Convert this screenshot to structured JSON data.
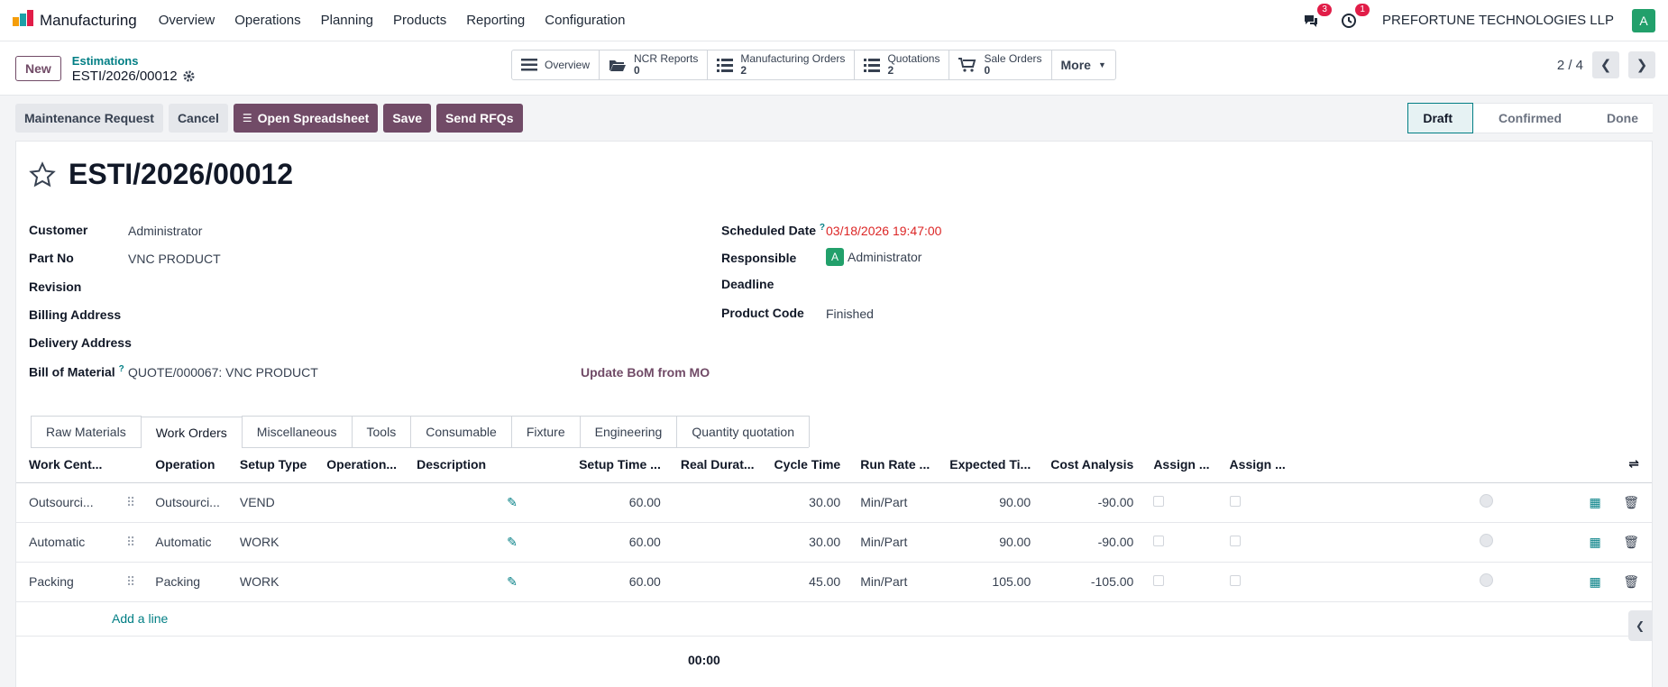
{
  "app": {
    "name": "Manufacturing"
  },
  "nav": {
    "items": [
      "Overview",
      "Operations",
      "Planning",
      "Products",
      "Reporting",
      "Configuration"
    ]
  },
  "systray": {
    "messages_count": "3",
    "activities_count": "1",
    "company": "PREFORTUNE TECHNOLOGIES LLP",
    "avatar_letter": "A"
  },
  "control": {
    "new_label": "New",
    "breadcrumb_parent": "Estimations",
    "breadcrumb_current": "ESTI/2026/00012",
    "pager": "2 / 4"
  },
  "smart_buttons": {
    "overview": "Overview",
    "ncr_label": "NCR Reports",
    "ncr_count": "0",
    "mo_label": "Manufacturing Orders",
    "mo_count": "2",
    "quot_label": "Quotations",
    "quot_count": "2",
    "so_label": "Sale Orders",
    "so_count": "0",
    "more": "More"
  },
  "actions": {
    "maintenance": "Maintenance Request",
    "cancel": "Cancel",
    "spreadsheet": "Open Spreadsheet",
    "save": "Save",
    "rfq": "Send RFQs"
  },
  "stages": {
    "draft": "Draft",
    "confirmed": "Confirmed",
    "done": "Done"
  },
  "record": {
    "title": "ESTI/2026/00012",
    "customer_label": "Customer",
    "customer": "Administrator",
    "partno_label": "Part No",
    "partno": "VNC PRODUCT",
    "revision_label": "Revision",
    "billing_label": "Billing Address",
    "delivery_label": "Delivery Address",
    "bom_label": "Bill of Material",
    "bom": "QUOTE/000067: VNC PRODUCT",
    "update_bom": "Update BoM from MO",
    "scheduled_label": "Scheduled Date",
    "scheduled": "03/18/2026 19:47:00",
    "responsible_label": "Responsible",
    "responsible": "Administrator",
    "responsible_avatar": "A",
    "deadline_label": "Deadline",
    "product_code_label": "Product Code",
    "product_code": "Finished",
    "tooltip_mark": "?"
  },
  "tabs": [
    "Raw Materials",
    "Work Orders",
    "Miscellaneous",
    "Tools",
    "Consumable",
    "Fixture",
    "Engineering",
    "Quantity quotation"
  ],
  "table": {
    "headers": [
      "Work Cent...",
      "Operation",
      "Setup Type",
      "Operation...",
      "Description",
      "Setup Time ...",
      "Real Durat...",
      "Cycle Time",
      "Run Rate ...",
      "Expected Ti...",
      "Cost Analysis",
      "Assign ...",
      "Assign ..."
    ],
    "rows": [
      {
        "wc": "Outsourci...",
        "op": "Outsourci...",
        "setup_type": "VEND",
        "setup_time": "60.00",
        "cycle": "30.00",
        "rate": "Min/Part",
        "expected": "90.00",
        "cost": "-90.00"
      },
      {
        "wc": "Automatic",
        "op": "Automatic",
        "setup_type": "WORK",
        "setup_time": "60.00",
        "cycle": "30.00",
        "rate": "Min/Part",
        "expected": "90.00",
        "cost": "-90.00"
      },
      {
        "wc": "Packing",
        "op": "Packing",
        "setup_type": "WORK",
        "setup_time": "60.00",
        "cycle": "45.00",
        "rate": "Min/Part",
        "expected": "105.00",
        "cost": "-105.00"
      }
    ],
    "add_line": "Add a line",
    "total": "00:00"
  },
  "colors": {
    "brand": "#714b67",
    "teal": "#017e84",
    "danger": "#e11d48"
  }
}
